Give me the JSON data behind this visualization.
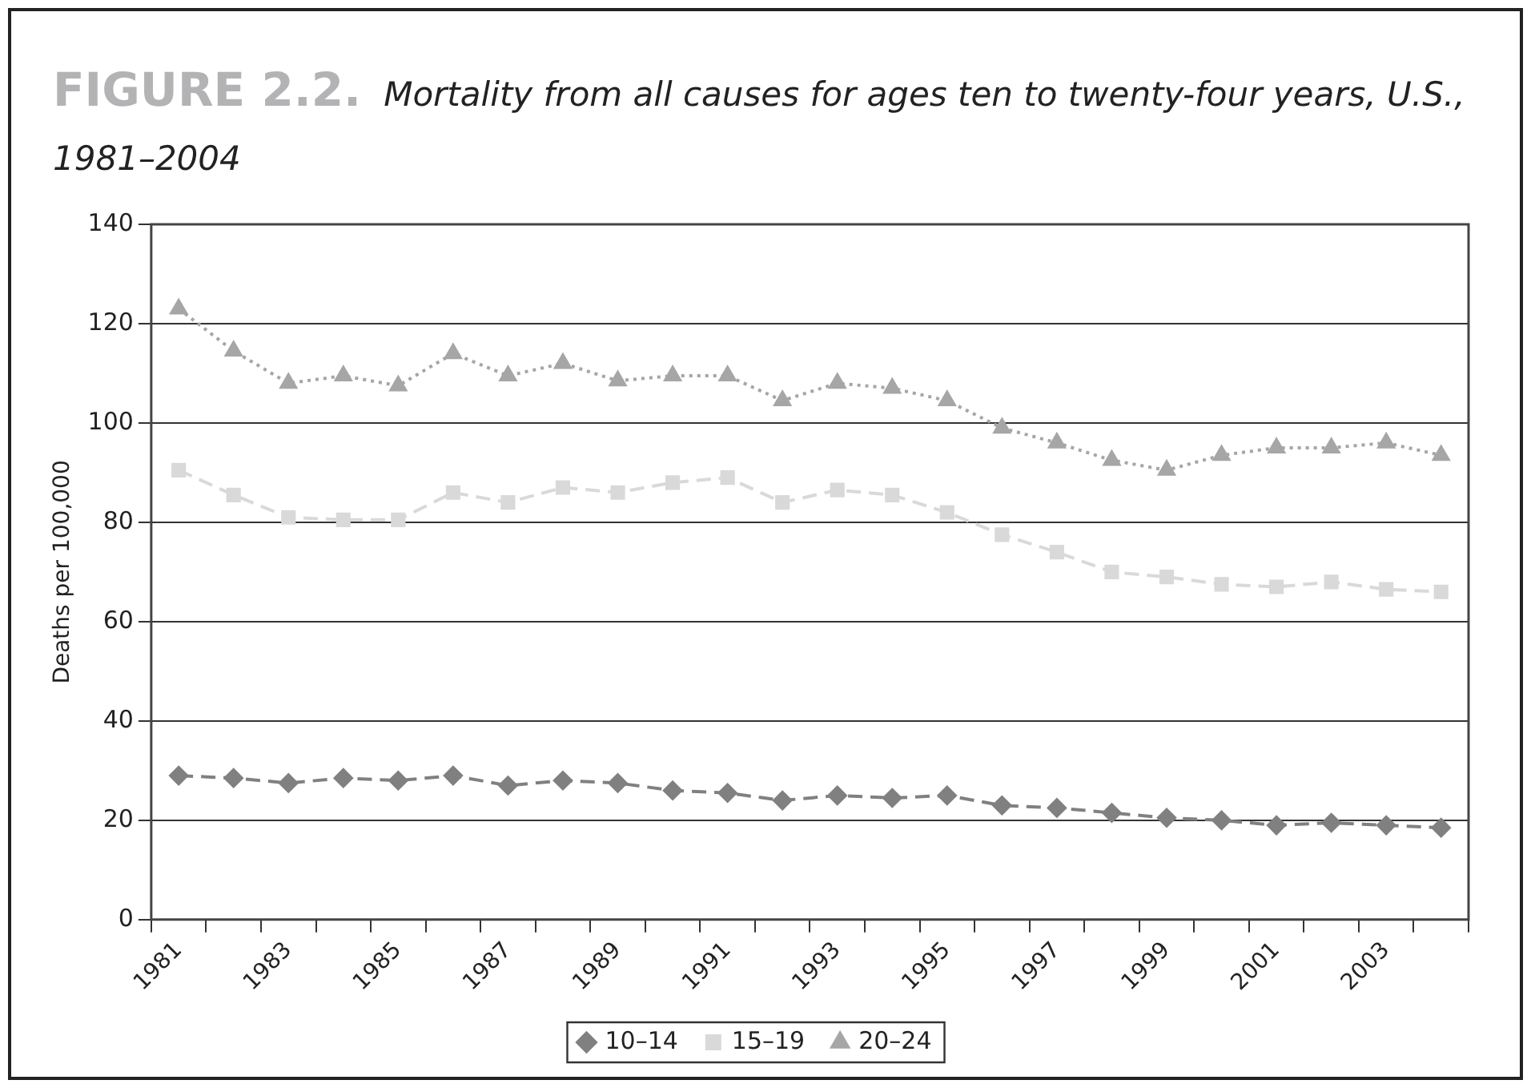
{
  "chart_data": {
    "type": "line",
    "title": "FIGURE 2.2.",
    "subtitle": "Mortality from all causes for ages ten to twenty-four years, U.S., 1981–2004",
    "ylabel": "Deaths per 100,000",
    "categories": [
      "1981",
      null,
      "1983",
      null,
      "1985",
      null,
      "1987",
      null,
      "1989",
      null,
      "1991",
      null,
      "1993",
      null,
      "1995",
      null,
      "1997",
      null,
      "1999",
      null,
      "2001",
      null,
      "2003",
      null
    ],
    "series": [
      {
        "name": "10–14",
        "color": "#808080",
        "marker": "diamond",
        "line_style": "dashed",
        "values": [
          29,
          28.5,
          27.5,
          28.5,
          28,
          29,
          27,
          28,
          27.5,
          26,
          25.5,
          24,
          25,
          24.5,
          25,
          23,
          22.5,
          21.5,
          20.5,
          20,
          19,
          19.5,
          19,
          18.5
        ]
      },
      {
        "name": "15–19",
        "color": "#d9d9d9",
        "marker": "square",
        "line_style": "dashed",
        "values": [
          90.5,
          85.5,
          81,
          80.5,
          80.5,
          86,
          84,
          87,
          86,
          88,
          89,
          84,
          86.5,
          85.5,
          82,
          77.5,
          74,
          70,
          69,
          67.5,
          67,
          68,
          66.5,
          66
        ]
      },
      {
        "name": "20–24",
        "color": "#a6a6a6",
        "marker": "triangle",
        "line_style": "dotted",
        "values": [
          123,
          114.5,
          108,
          109.5,
          107.5,
          114,
          109.5,
          112,
          108.5,
          109.5,
          109.5,
          104.5,
          108,
          107,
          104.5,
          99,
          96,
          92.5,
          90.5,
          93.5,
          95,
          95,
          96,
          93.5
        ]
      }
    ],
    "ylim": [
      0,
      140
    ],
    "yticks": [
      0,
      20,
      40,
      60,
      80,
      100,
      120,
      140
    ],
    "grid": "y",
    "legend": "bottom"
  }
}
